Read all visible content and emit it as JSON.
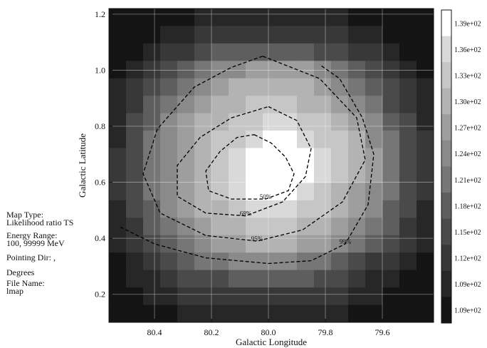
{
  "chart_data": {
    "type": "heatmap",
    "xlabel": "Galactic Longitude",
    "ylabel": "Galactic Latitude",
    "xlim": [
      80.56,
      79.42
    ],
    "ylim": [
      0.1,
      1.22
    ],
    "x_reversed": true,
    "x_ticks": [
      80.4,
      80.2,
      80.0,
      79.8,
      79.6
    ],
    "x_tick_labels": [
      "80.4",
      "80.2",
      "80.0",
      "79.8",
      "79.6"
    ],
    "y_ticks": [
      0.2,
      0.4,
      0.6,
      0.8,
      1.0,
      1.2
    ],
    "y_tick_labels": [
      "0.2",
      "0.4",
      "0.6",
      "0.8",
      "1.0",
      "1.2"
    ],
    "grid": true,
    "colorbar": {
      "levels": [
        "1.39e+02",
        "1.36e+02",
        "1.33e+02",
        "1.30e+02",
        "1.27e+02",
        "1.24e+02",
        "1.21e+02",
        "1.18e+02",
        "1.15e+02",
        "1.12e+02",
        "1.09e+02",
        "1.09e+02"
      ],
      "colors": [
        "#ffffff",
        "#d9d9d9",
        "#c6c6c6",
        "#b3b3b3",
        "#9e9e9e",
        "#8a8a8a",
        "#767676",
        "#5e5e5e",
        "#4a4a4a",
        "#383838",
        "#272727",
        "#141414"
      ]
    },
    "grid_cols": 19,
    "grid_rows": 18,
    "cells": [
      [
        11,
        11,
        11,
        11,
        11,
        10,
        10,
        10,
        10,
        10,
        10,
        10,
        10,
        10,
        11,
        11,
        11,
        11,
        11
      ],
      [
        11,
        11,
        11,
        10,
        10,
        9,
        9,
        9,
        9,
        9,
        9,
        9,
        9,
        9,
        10,
        10,
        11,
        11,
        11
      ],
      [
        11,
        11,
        10,
        9,
        9,
        8,
        7,
        7,
        7,
        7,
        7,
        7,
        8,
        8,
        9,
        9,
        10,
        11,
        11
      ],
      [
        11,
        10,
        9,
        8,
        7,
        6,
        5,
        5,
        4,
        4,
        4,
        4,
        5,
        6,
        7,
        8,
        9,
        10,
        11
      ],
      [
        10,
        9,
        8,
        7,
        6,
        5,
        4,
        3,
        3,
        3,
        3,
        3,
        4,
        5,
        6,
        7,
        8,
        9,
        10
      ],
      [
        10,
        9,
        7,
        6,
        5,
        4,
        3,
        3,
        2,
        2,
        2,
        3,
        3,
        4,
        5,
        6,
        8,
        9,
        10
      ],
      [
        10,
        8,
        7,
        5,
        4,
        3,
        3,
        2,
        2,
        1,
        1,
        2,
        2,
        3,
        4,
        5,
        7,
        8,
        10
      ],
      [
        10,
        8,
        6,
        5,
        4,
        3,
        2,
        2,
        1,
        0,
        0,
        1,
        2,
        2,
        3,
        5,
        6,
        8,
        9
      ],
      [
        9,
        8,
        6,
        5,
        4,
        3,
        2,
        1,
        0,
        0,
        0,
        0,
        1,
        2,
        3,
        4,
        6,
        8,
        9
      ],
      [
        9,
        8,
        6,
        5,
        4,
        3,
        2,
        1,
        0,
        0,
        0,
        0,
        1,
        2,
        3,
        4,
        6,
        8,
        9
      ],
      [
        9,
        8,
        6,
        5,
        4,
        3,
        2,
        1,
        0,
        0,
        0,
        1,
        2,
        3,
        4,
        5,
        6,
        8,
        9
      ],
      [
        10,
        8,
        7,
        5,
        4,
        3,
        3,
        2,
        1,
        1,
        1,
        2,
        2,
        3,
        4,
        5,
        7,
        8,
        10
      ],
      [
        10,
        9,
        7,
        6,
        5,
        4,
        3,
        3,
        2,
        2,
        2,
        3,
        3,
        4,
        5,
        6,
        7,
        9,
        10
      ],
      [
        10,
        9,
        8,
        7,
        6,
        5,
        4,
        4,
        3,
        3,
        3,
        4,
        4,
        5,
        6,
        7,
        8,
        9,
        10
      ],
      [
        11,
        10,
        9,
        8,
        7,
        6,
        6,
        5,
        5,
        5,
        5,
        6,
        6,
        7,
        8,
        9,
        9,
        10,
        11
      ],
      [
        11,
        10,
        10,
        9,
        8,
        8,
        8,
        7,
        7,
        7,
        7,
        7,
        8,
        8,
        9,
        10,
        10,
        11,
        11
      ],
      [
        11,
        11,
        10,
        10,
        9,
        9,
        9,
        9,
        9,
        9,
        9,
        9,
        9,
        9,
        10,
        10,
        11,
        11,
        11
      ],
      [
        11,
        11,
        11,
        11,
        10,
        10,
        10,
        10,
        10,
        10,
        10,
        10,
        10,
        10,
        11,
        11,
        11,
        11,
        11
      ]
    ],
    "contours": [
      {
        "label": "50%",
        "points": [
          [
            80.05,
            0.77
          ],
          [
            79.99,
            0.74
          ],
          [
            79.94,
            0.69
          ],
          [
            79.91,
            0.63
          ],
          [
            79.93,
            0.57
          ],
          [
            80.01,
            0.54
          ],
          [
            80.13,
            0.54
          ],
          [
            80.21,
            0.57
          ],
          [
            80.22,
            0.64
          ],
          [
            80.17,
            0.71
          ],
          [
            80.11,
            0.76
          ]
        ]
      },
      {
        "label": "68%",
        "points": [
          [
            80.0,
            0.87
          ],
          [
            79.9,
            0.82
          ],
          [
            79.85,
            0.72
          ],
          [
            79.87,
            0.62
          ],
          [
            79.95,
            0.53
          ],
          [
            80.08,
            0.48
          ],
          [
            80.22,
            0.49
          ],
          [
            80.32,
            0.55
          ],
          [
            80.32,
            0.66
          ],
          [
            80.24,
            0.76
          ],
          [
            80.13,
            0.83
          ]
        ]
      },
      {
        "label": "95%",
        "points": [
          [
            80.02,
            1.05
          ],
          [
            79.82,
            0.97
          ],
          [
            79.69,
            0.83
          ],
          [
            79.66,
            0.68
          ],
          [
            79.74,
            0.53
          ],
          [
            79.88,
            0.43
          ],
          [
            80.04,
            0.39
          ],
          [
            80.22,
            0.41
          ],
          [
            80.38,
            0.49
          ],
          [
            80.44,
            0.63
          ],
          [
            80.39,
            0.79
          ],
          [
            80.26,
            0.94
          ],
          [
            80.13,
            1.01
          ]
        ]
      },
      {
        "label": "99%",
        "points": [
          [
            80.52,
            0.44
          ],
          [
            80.4,
            0.38
          ],
          [
            80.22,
            0.33
          ],
          [
            80.0,
            0.31
          ],
          [
            79.85,
            0.32
          ],
          [
            79.73,
            0.38
          ],
          [
            79.65,
            0.52
          ],
          [
            79.63,
            0.7
          ],
          [
            79.67,
            0.83
          ],
          [
            79.75,
            0.97
          ],
          [
            79.82,
            1.02
          ]
        ]
      }
    ]
  },
  "info_panel": {
    "map_type_label": "Map Type:",
    "map_type_value": "Likelihood ratio TS",
    "energy_label": "Energy Range:",
    "energy_value": "100, 99999 MeV",
    "pointing_label": "Pointing Dir: ,",
    "degrees_label": "Degrees",
    "file_label": "File Name:",
    "file_value": "lmap"
  }
}
